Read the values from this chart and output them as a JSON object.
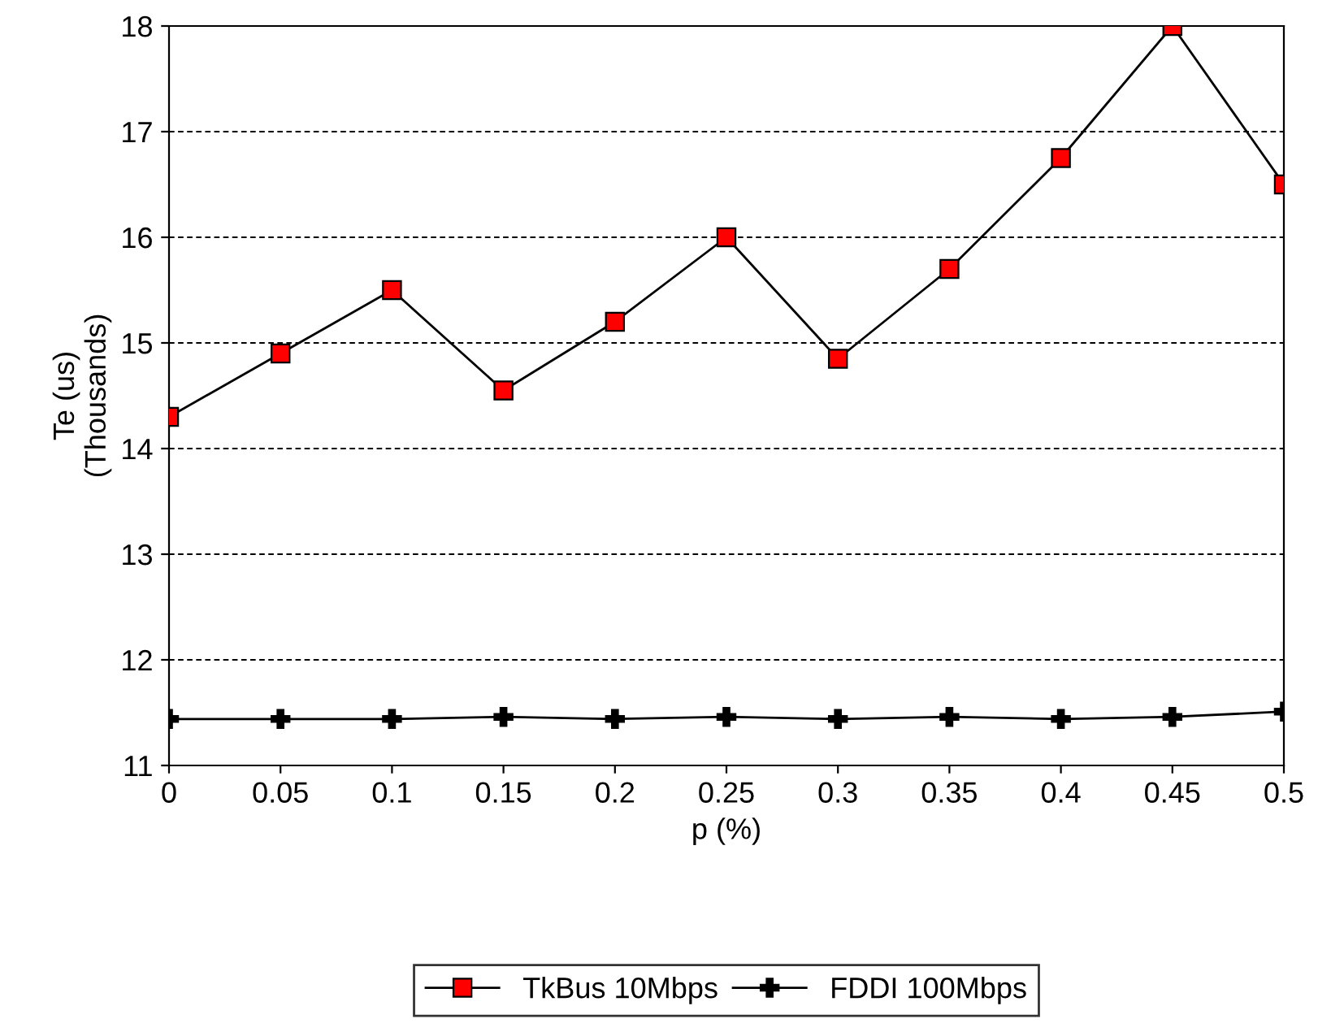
{
  "chart_data": {
    "type": "line",
    "xlabel": "p (%)",
    "ylabel": "Te (us)\n(Thousands)",
    "x": [
      0,
      0.05,
      0.1,
      0.15,
      0.2,
      0.25,
      0.3,
      0.35,
      0.4,
      0.45,
      0.5
    ],
    "series": [
      {
        "name": "TkBus 10Mbps",
        "color": "#ff0000",
        "marker": "square",
        "values": [
          14.3,
          14.9,
          15.5,
          14.55,
          15.2,
          16.0,
          14.85,
          15.7,
          16.75,
          18.0,
          16.5
        ]
      },
      {
        "name": "FDDI 100Mbps",
        "color": "#000000",
        "marker": "cross",
        "values": [
          11.44,
          11.44,
          11.44,
          11.46,
          11.44,
          11.46,
          11.44,
          11.46,
          11.44,
          11.46,
          11.51
        ]
      }
    ],
    "xlim": [
      0,
      0.5
    ],
    "xticks": [
      0,
      0.05,
      0.1,
      0.15,
      0.2,
      0.25,
      0.3,
      0.35,
      0.4,
      0.45,
      0.5
    ],
    "ylim": [
      11,
      18
    ],
    "yticks": [
      11,
      12,
      13,
      14,
      15,
      16,
      17,
      18
    ],
    "grid": "y",
    "legend": "bottom",
    "line_style": "solid"
  }
}
